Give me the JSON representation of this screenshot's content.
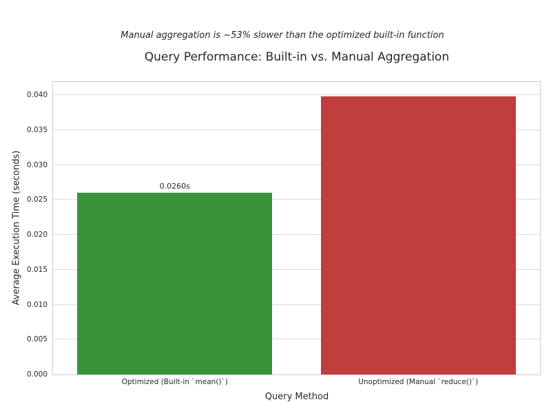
{
  "chart_data": {
    "type": "bar",
    "title": "Query Performance: Built-in vs. Manual Aggregation",
    "subtitle": "Manual aggregation is ~53% slower than the optimized built-in function",
    "xlabel": "Query Method",
    "ylabel": "Average Execution Time (seconds)",
    "categories": [
      "Optimized (Built-in `mean()`)",
      "Unoptimized (Manual `reduce()`)"
    ],
    "values": [
      0.026,
      0.0398
    ],
    "bar_value_labels": [
      "0.0260s",
      ""
    ],
    "bar_colors": [
      "#3a923a",
      "#c13e3e"
    ],
    "yticks": [
      0.0,
      0.005,
      0.01,
      0.015,
      0.02,
      0.025,
      0.03,
      0.035,
      0.04
    ],
    "ytick_labels": [
      "0.000",
      "0.005",
      "0.010",
      "0.015",
      "0.020",
      "0.025",
      "0.030",
      "0.035",
      "0.040"
    ],
    "ylim": [
      0,
      0.0419
    ],
    "grid": true,
    "legend_position": "none",
    "text_color": "#262626",
    "grid_color": "#dcdcdc",
    "spine_color": "#cccccc",
    "background_color": "#ffffff"
  }
}
